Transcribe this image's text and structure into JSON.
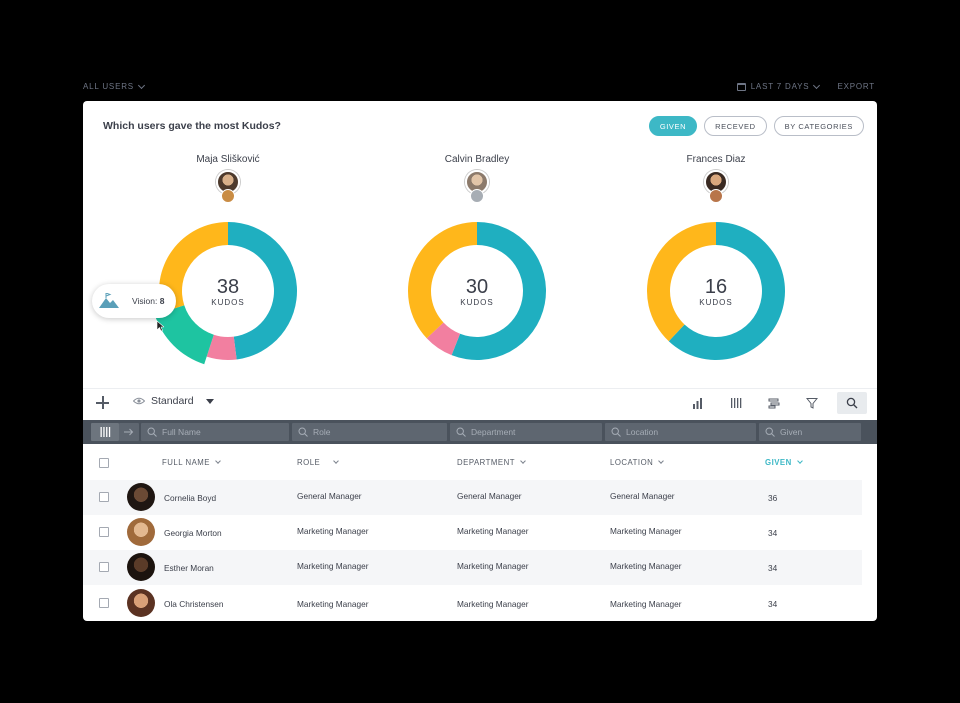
{
  "topbar": {
    "users_filter": "ALL USERS",
    "period": "LAST 7 DAYS",
    "export": "EXPORT"
  },
  "panel": {
    "title": "Which users gave the most Kudos?",
    "filters": [
      {
        "label": "GIVEN",
        "active": true
      },
      {
        "label": "RECEVED",
        "active": false
      },
      {
        "label": "BY CATEGORIES",
        "active": false
      }
    ]
  },
  "leaders": [
    {
      "name": "Maja Slišković",
      "kudos": "38",
      "unit": "KUDOS",
      "rank": 1,
      "medal_color": "#c98c44"
    },
    {
      "name": "Calvin Bradley",
      "kudos": "30",
      "unit": "KUDOS",
      "rank": 2,
      "medal_color": "#a7adb4"
    },
    {
      "name": "Frances Diaz",
      "kudos": "16",
      "unit": "KUDOS",
      "rank": 3,
      "medal_color": "#b8754a"
    }
  ],
  "chart_data": [
    {
      "type": "pie",
      "series": [
        {
          "values": [
            48,
            7,
            15,
            30
          ]
        }
      ],
      "colors": [
        "#1fafc0",
        "#f27fa0",
        "#1ec4a1",
        "#ffb71b"
      ],
      "hovered_segment_value": "8",
      "hovered_segment_label": "Vision:"
    },
    {
      "type": "pie",
      "series": [
        {
          "values": [
            56,
            7,
            37
          ]
        }
      ],
      "colors": [
        "#1fafc0",
        "#f27fa0",
        "#ffb71b"
      ]
    },
    {
      "type": "pie",
      "series": [
        {
          "values": [
            62,
            38
          ]
        }
      ],
      "colors": [
        "#1fafc0",
        "#ffb71b"
      ]
    }
  ],
  "tooltip": {
    "label": "Vision:",
    "value": "8"
  },
  "toolbar": {
    "view_label": "Standard"
  },
  "filters_row": {
    "full_name": "Full Name",
    "role": "Role",
    "department": "Department",
    "location": "Location",
    "given": "Given"
  },
  "table": {
    "headers": {
      "full_name": "FULL NAME",
      "role": "ROLE",
      "department": "DEPARTMENT",
      "location": "LOCATION",
      "given": "GIVEN"
    },
    "rows": [
      {
        "name": "Cornelia Boyd",
        "role": "General Manager",
        "department": "General Manager",
        "location": "General Manager",
        "given": "36"
      },
      {
        "name": "Georgia Morton",
        "role": "Marketing Manager",
        "department": "Marketing Manager",
        "location": "Marketing Manager",
        "given": "34"
      },
      {
        "name": "Esther Moran",
        "role": "Marketing Manager",
        "department": "Marketing Manager",
        "location": "Marketing Manager",
        "given": "34"
      },
      {
        "name": "Ola Christensen",
        "role": "Marketing Manager",
        "department": "Marketing Manager",
        "location": "Marketing Manager",
        "given": "34"
      }
    ]
  },
  "colors": {
    "accent": "#3db8c6",
    "teal": "#1fafc0",
    "yellow": "#ffb71b",
    "pink": "#f27fa0",
    "green": "#1ec4a1"
  }
}
